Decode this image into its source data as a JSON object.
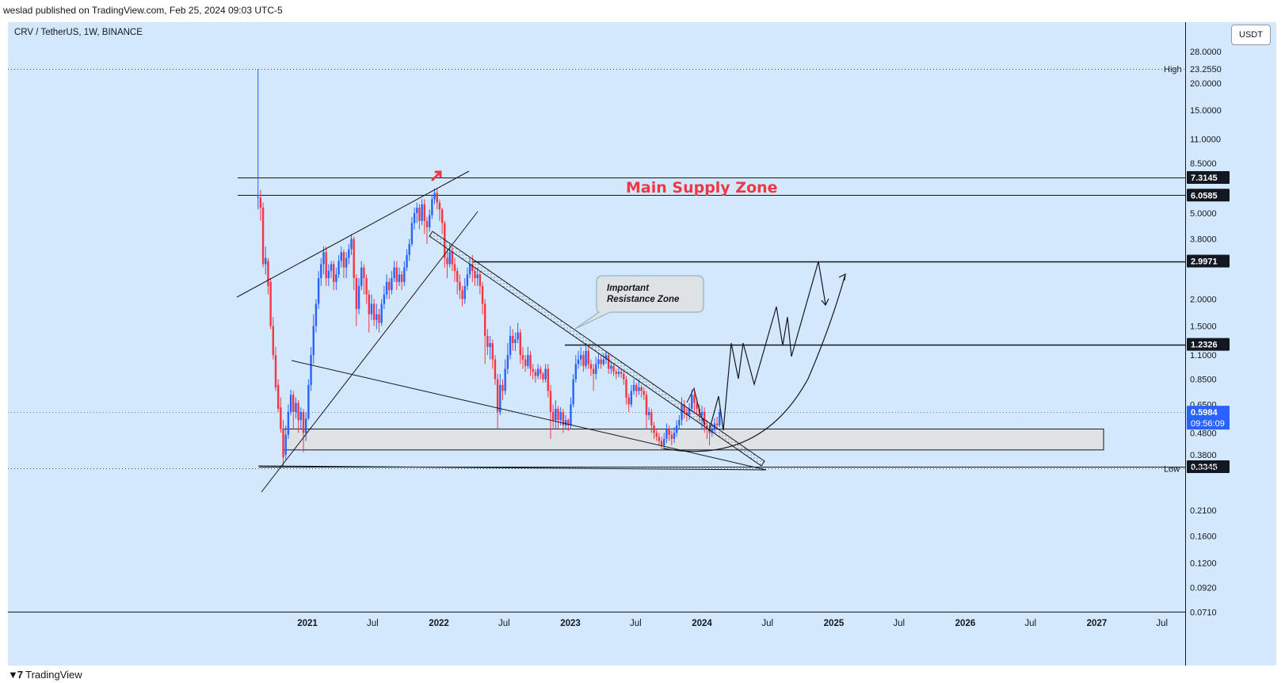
{
  "publisher": "weslad published on TradingView.com, Feb 25, 2024 09:03 UTC-5",
  "footer": {
    "logo_icon": "tradingview-logo-icon",
    "brand": "TradingView"
  },
  "symbol": "CRV / TetherUS, 1W, BINANCE",
  "currency": "USDT",
  "colors": {
    "background": "#d4e8fb",
    "up_candle": "#2962ff",
    "down_candle": "#f23645",
    "annotation_text": "#f23645",
    "line": "#131722"
  },
  "chart_data": {
    "type": "candlestick",
    "title": "",
    "yscale": "log",
    "y_ticks": [
      "28.0000",
      "20.0000",
      "15.0000",
      "11.0000",
      "8.5000",
      "5.0000",
      "3.8000",
      "2.0000",
      "1.5000",
      "1.1000",
      "0.8500",
      "0.6500",
      "0.4800",
      "0.3800",
      "0.2100",
      "0.1600",
      "0.1200",
      "0.0920",
      "0.0710"
    ],
    "x_ticks": [
      "2021",
      "Jul",
      "2022",
      "Jul",
      "2023",
      "Jul",
      "2024",
      "Jul",
      "2025",
      "Jul",
      "2026",
      "Jul",
      "2027",
      "Jul"
    ],
    "price_labels": [
      {
        "value": "7.3145",
        "style": "dark"
      },
      {
        "value": "6.0585",
        "style": "dark"
      },
      {
        "value": "2.9971",
        "style": "dark"
      },
      {
        "value": "1.2326",
        "style": "dark"
      },
      {
        "value": "0.5984",
        "style": "blue",
        "sub": "09:56:09"
      },
      {
        "value": "0.3345",
        "style": "dark"
      }
    ],
    "high": {
      "label": "High",
      "value": "23.2550"
    },
    "low": {
      "label": "Low",
      "value": "0.3280"
    },
    "horizontal_levels": [
      7.3145,
      6.0585,
      2.9971,
      1.2326,
      0.3345
    ],
    "zones": [
      {
        "label": "Main Supply Zone",
        "from": 6.0585,
        "to": 7.3145
      },
      {
        "label": "",
        "from": 0.4,
        "to": 0.5
      }
    ],
    "annotations": [
      {
        "type": "callout",
        "text": "Important\nResistance Zone"
      }
    ],
    "candles": [
      [
        "2020-08-17",
        5.95,
        5.95,
        23.26,
        5.2
      ],
      [
        "2020-08-24",
        5.9,
        5.3,
        6.4,
        4.6
      ],
      [
        "2020-08-31",
        5.3,
        2.9,
        5.6,
        2.8
      ],
      [
        "2020-09-07",
        2.9,
        3.1,
        3.5,
        2.6
      ],
      [
        "2020-09-14",
        3.0,
        2.3,
        3.1,
        2.1
      ],
      [
        "2020-09-21",
        2.4,
        1.5,
        2.5,
        1.45
      ],
      [
        "2020-09-28",
        1.5,
        1.1,
        1.65,
        1.05
      ],
      [
        "2020-10-05",
        1.1,
        0.78,
        1.2,
        0.75
      ],
      [
        "2020-10-12",
        0.8,
        0.62,
        0.85,
        0.6
      ],
      [
        "2020-10-19",
        0.63,
        0.5,
        0.7,
        0.48
      ],
      [
        "2020-10-26",
        0.5,
        0.37,
        0.55,
        0.33
      ],
      [
        "2020-11-02",
        0.38,
        0.47,
        0.52,
        0.36
      ],
      [
        "2020-11-09",
        0.47,
        0.6,
        0.65,
        0.45
      ],
      [
        "2020-11-16",
        0.6,
        0.72,
        0.76,
        0.58
      ],
      [
        "2020-11-23",
        0.72,
        0.6,
        0.75,
        0.5
      ],
      [
        "2020-11-30",
        0.6,
        0.66,
        0.7,
        0.56
      ],
      [
        "2020-12-07",
        0.66,
        0.55,
        0.68,
        0.48
      ],
      [
        "2020-12-14",
        0.55,
        0.6,
        0.63,
        0.5
      ],
      [
        "2020-12-21",
        0.6,
        0.48,
        0.62,
        0.39
      ],
      [
        "2020-12-28",
        0.48,
        0.56,
        0.6,
        0.44
      ],
      [
        "2021-01-04",
        0.56,
        0.8,
        0.85,
        0.55
      ],
      [
        "2021-01-11",
        0.8,
        1.1,
        1.2,
        0.75
      ],
      [
        "2021-01-18",
        1.1,
        1.5,
        1.7,
        1.0
      ],
      [
        "2021-01-25",
        1.5,
        1.9,
        2.0,
        1.4
      ],
      [
        "2021-02-01",
        1.9,
        2.5,
        2.7,
        1.8
      ],
      [
        "2021-02-08",
        2.5,
        2.9,
        3.1,
        2.3
      ],
      [
        "2021-02-15",
        2.9,
        3.3,
        3.5,
        2.6
      ],
      [
        "2021-02-22",
        3.3,
        2.5,
        3.5,
        2.3
      ],
      [
        "2021-03-01",
        2.5,
        2.7,
        2.9,
        2.3
      ],
      [
        "2021-03-08",
        2.7,
        2.9,
        3.0,
        2.5
      ],
      [
        "2021-03-15",
        2.9,
        2.4,
        3.0,
        2.2
      ],
      [
        "2021-03-22",
        2.4,
        2.6,
        2.8,
        2.2
      ],
      [
        "2021-03-29",
        2.6,
        3.0,
        3.2,
        2.5
      ],
      [
        "2021-04-05",
        3.0,
        3.3,
        3.5,
        2.8
      ],
      [
        "2021-04-12",
        3.3,
        2.8,
        3.4,
        2.5
      ],
      [
        "2021-04-19",
        2.8,
        3.1,
        3.3,
        2.5
      ],
      [
        "2021-04-26",
        3.1,
        3.4,
        3.6,
        2.9
      ],
      [
        "2021-05-03",
        3.4,
        3.8,
        4.0,
        3.2
      ],
      [
        "2021-05-10",
        3.8,
        2.5,
        3.9,
        2.2
      ],
      [
        "2021-05-17",
        2.5,
        1.8,
        2.6,
        1.5
      ],
      [
        "2021-05-24",
        1.8,
        2.3,
        2.5,
        1.7
      ],
      [
        "2021-05-31",
        2.3,
        2.8,
        3.0,
        2.2
      ],
      [
        "2021-06-07",
        2.8,
        2.5,
        2.9,
        2.1
      ],
      [
        "2021-06-14",
        2.5,
        2.1,
        2.6,
        1.9
      ],
      [
        "2021-06-21",
        2.1,
        1.7,
        2.2,
        1.4
      ],
      [
        "2021-06-28",
        1.7,
        1.9,
        2.1,
        1.6
      ],
      [
        "2021-07-05",
        1.9,
        1.6,
        2.0,
        1.5
      ],
      [
        "2021-07-12",
        1.6,
        1.7,
        1.9,
        1.45
      ],
      [
        "2021-07-19",
        1.7,
        1.55,
        1.8,
        1.4
      ],
      [
        "2021-07-26",
        1.55,
        1.9,
        2.0,
        1.5
      ],
      [
        "2021-08-02",
        1.9,
        2.1,
        2.3,
        1.8
      ],
      [
        "2021-08-09",
        2.1,
        2.4,
        2.6,
        2.0
      ],
      [
        "2021-08-16",
        2.4,
        2.2,
        2.5,
        2.0
      ],
      [
        "2021-08-23",
        2.2,
        2.5,
        2.7,
        2.1
      ],
      [
        "2021-08-30",
        2.5,
        2.8,
        3.0,
        2.4
      ],
      [
        "2021-09-06",
        2.8,
        2.4,
        3.0,
        2.2
      ],
      [
        "2021-09-13",
        2.4,
        2.6,
        2.8,
        2.3
      ],
      [
        "2021-09-20",
        2.6,
        2.4,
        2.7,
        2.2
      ],
      [
        "2021-09-27",
        2.4,
        2.8,
        3.0,
        2.3
      ],
      [
        "2021-10-04",
        2.8,
        3.2,
        3.4,
        2.7
      ],
      [
        "2021-10-11",
        3.2,
        3.6,
        3.8,
        3.0
      ],
      [
        "2021-10-18",
        3.6,
        4.5,
        4.8,
        3.5
      ],
      [
        "2021-10-25",
        4.5,
        5.0,
        5.3,
        4.2
      ],
      [
        "2021-11-01",
        5.0,
        5.3,
        5.6,
        4.5
      ],
      [
        "2021-11-08",
        5.3,
        4.6,
        5.5,
        4.2
      ],
      [
        "2021-11-15",
        4.6,
        5.5,
        5.8,
        4.4
      ],
      [
        "2021-11-22",
        5.5,
        4.6,
        5.8,
        4.0
      ],
      [
        "2021-11-29",
        4.6,
        4.3,
        4.8,
        3.6
      ],
      [
        "2021-12-06",
        4.3,
        4.9,
        5.2,
        4.1
      ],
      [
        "2021-12-13",
        4.9,
        5.8,
        6.1,
        4.7
      ],
      [
        "2021-12-20",
        5.8,
        6.2,
        6.5,
        5.5
      ],
      [
        "2021-12-27",
        6.2,
        5.6,
        6.5,
        5.2
      ],
      [
        "2022-01-03",
        5.6,
        5.2,
        5.8,
        4.6
      ],
      [
        "2022-01-10",
        5.2,
        4.5,
        5.3,
        4.0
      ],
      [
        "2022-01-17",
        4.5,
        3.1,
        4.6,
        2.8
      ],
      [
        "2022-01-24",
        3.1,
        2.9,
        3.4,
        2.5
      ],
      [
        "2022-01-31",
        2.9,
        3.3,
        3.6,
        2.8
      ],
      [
        "2022-02-07",
        3.3,
        2.9,
        3.5,
        2.7
      ],
      [
        "2022-02-14",
        2.9,
        2.7,
        3.1,
        2.4
      ],
      [
        "2022-02-21",
        2.7,
        2.4,
        2.8,
        2.1
      ],
      [
        "2022-02-28",
        2.4,
        2.2,
        2.6,
        2.0
      ],
      [
        "2022-03-07",
        2.2,
        2.0,
        2.3,
        1.85
      ],
      [
        "2022-03-14",
        2.0,
        2.3,
        2.5,
        1.9
      ],
      [
        "2022-03-21",
        2.3,
        2.6,
        2.8,
        2.2
      ],
      [
        "2022-03-28",
        2.6,
        2.9,
        3.1,
        2.5
      ],
      [
        "2022-04-04",
        2.9,
        2.7,
        3.2,
        2.4
      ],
      [
        "2022-04-11",
        2.7,
        2.5,
        2.8,
        2.3
      ],
      [
        "2022-04-18",
        2.5,
        2.6,
        2.8,
        2.3
      ],
      [
        "2022-04-25",
        2.6,
        2.3,
        2.7,
        2.1
      ],
      [
        "2022-05-02",
        2.3,
        1.9,
        2.4,
        1.7
      ],
      [
        "2022-05-09",
        1.9,
        1.35,
        2.0,
        1.0
      ],
      [
        "2022-05-16",
        1.35,
        1.2,
        1.45,
        1.1
      ],
      [
        "2022-05-23",
        1.2,
        1.25,
        1.35,
        1.05
      ],
      [
        "2022-05-30",
        1.25,
        1.05,
        1.3,
        0.95
      ],
      [
        "2022-06-06",
        1.05,
        0.85,
        1.1,
        0.8
      ],
      [
        "2022-06-13",
        0.85,
        0.6,
        0.9,
        0.5
      ],
      [
        "2022-06-20",
        0.6,
        0.8,
        0.9,
        0.58
      ],
      [
        "2022-06-27",
        0.8,
        0.75,
        0.85,
        0.68
      ],
      [
        "2022-07-04",
        0.75,
        0.95,
        1.05,
        0.72
      ],
      [
        "2022-07-11",
        0.95,
        1.1,
        1.25,
        0.9
      ],
      [
        "2022-07-18",
        1.1,
        1.35,
        1.5,
        1.05
      ],
      [
        "2022-07-25",
        1.35,
        1.25,
        1.45,
        1.15
      ],
      [
        "2022-08-01",
        1.25,
        1.3,
        1.4,
        1.15
      ],
      [
        "2022-08-08",
        1.3,
        1.4,
        1.55,
        1.25
      ],
      [
        "2022-08-15",
        1.4,
        1.1,
        1.45,
        1.0
      ],
      [
        "2022-08-22",
        1.1,
        1.05,
        1.2,
        0.95
      ],
      [
        "2022-08-29",
        1.05,
        0.98,
        1.1,
        0.92
      ],
      [
        "2022-09-05",
        0.98,
        1.1,
        1.2,
        0.95
      ],
      [
        "2022-09-12",
        1.1,
        0.95,
        1.15,
        0.88
      ],
      [
        "2022-09-19",
        0.95,
        0.92,
        1.0,
        0.85
      ],
      [
        "2022-09-26",
        0.92,
        0.88,
        0.95,
        0.82
      ],
      [
        "2022-10-03",
        0.88,
        0.95,
        1.0,
        0.85
      ],
      [
        "2022-10-10",
        0.95,
        0.9,
        0.98,
        0.85
      ],
      [
        "2022-10-17",
        0.9,
        0.85,
        0.92,
        0.82
      ],
      [
        "2022-10-24",
        0.85,
        0.95,
        1.0,
        0.82
      ],
      [
        "2022-10-31",
        0.95,
        0.75,
        1.0,
        0.7
      ],
      [
        "2022-11-07",
        0.75,
        0.6,
        0.8,
        0.45
      ],
      [
        "2022-11-14",
        0.6,
        0.55,
        0.65,
        0.5
      ],
      [
        "2022-11-21",
        0.55,
        0.62,
        0.68,
        0.5
      ],
      [
        "2022-11-28",
        0.62,
        0.55,
        0.64,
        0.5
      ],
      [
        "2022-12-05",
        0.55,
        0.6,
        0.63,
        0.52
      ],
      [
        "2022-12-12",
        0.6,
        0.52,
        0.62,
        0.48
      ],
      [
        "2022-12-19",
        0.52,
        0.55,
        0.58,
        0.5
      ],
      [
        "2022-12-26",
        0.55,
        0.52,
        0.56,
        0.49
      ],
      [
        "2023-01-02",
        0.52,
        0.65,
        0.7,
        0.5
      ],
      [
        "2023-01-09",
        0.65,
        0.85,
        0.9,
        0.63
      ],
      [
        "2023-01-16",
        0.85,
        1.0,
        1.1,
        0.82
      ],
      [
        "2023-01-23",
        1.0,
        1.05,
        1.15,
        0.95
      ],
      [
        "2023-01-30",
        1.05,
        1.1,
        1.2,
        0.98
      ],
      [
        "2023-02-06",
        1.1,
        0.98,
        1.15,
        0.92
      ],
      [
        "2023-02-13",
        0.98,
        1.15,
        1.25,
        0.95
      ],
      [
        "2023-02-20",
        1.15,
        1.0,
        1.2,
        0.95
      ],
      [
        "2023-02-27",
        1.0,
        0.95,
        1.05,
        0.88
      ],
      [
        "2023-03-06",
        0.95,
        0.9,
        1.0,
        0.75
      ],
      [
        "2023-03-13",
        0.9,
        1.0,
        1.08,
        0.85
      ],
      [
        "2023-03-20",
        1.0,
        1.05,
        1.12,
        0.95
      ],
      [
        "2023-03-27",
        1.05,
        1.0,
        1.1,
        0.95
      ],
      [
        "2023-04-03",
        1.0,
        1.05,
        1.12,
        0.98
      ],
      [
        "2023-04-10",
        1.05,
        1.1,
        1.15,
        1.0
      ],
      [
        "2023-04-17",
        1.1,
        0.95,
        1.12,
        0.9
      ],
      [
        "2023-04-24",
        0.95,
        0.98,
        1.02,
        0.9
      ],
      [
        "2023-05-01",
        0.98,
        0.92,
        1.0,
        0.88
      ],
      [
        "2023-05-08",
        0.92,
        0.9,
        0.95,
        0.85
      ],
      [
        "2023-05-15",
        0.9,
        0.92,
        0.96,
        0.87
      ],
      [
        "2023-05-22",
        0.92,
        0.9,
        0.95,
        0.86
      ],
      [
        "2023-05-29",
        0.9,
        0.85,
        0.93,
        0.8
      ],
      [
        "2023-06-05",
        0.85,
        0.7,
        0.88,
        0.65
      ],
      [
        "2023-06-12",
        0.7,
        0.65,
        0.73,
        0.6
      ],
      [
        "2023-06-19",
        0.65,
        0.75,
        0.8,
        0.63
      ],
      [
        "2023-06-26",
        0.75,
        0.8,
        0.85,
        0.72
      ],
      [
        "2023-07-03",
        0.8,
        0.75,
        0.82,
        0.7
      ],
      [
        "2023-07-10",
        0.75,
        0.78,
        0.85,
        0.72
      ],
      [
        "2023-07-17",
        0.78,
        0.75,
        0.8,
        0.7
      ],
      [
        "2023-07-24",
        0.75,
        0.72,
        0.78,
        0.68
      ],
      [
        "2023-07-31",
        0.72,
        0.58,
        0.75,
        0.5
      ],
      [
        "2023-08-07",
        0.58,
        0.6,
        0.63,
        0.55
      ],
      [
        "2023-08-14",
        0.6,
        0.52,
        0.62,
        0.48
      ],
      [
        "2023-08-21",
        0.52,
        0.48,
        0.54,
        0.45
      ],
      [
        "2023-08-28",
        0.48,
        0.46,
        0.5,
        0.44
      ],
      [
        "2023-09-04",
        0.46,
        0.44,
        0.48,
        0.42
      ],
      [
        "2023-09-11",
        0.44,
        0.42,
        0.46,
        0.4
      ],
      [
        "2023-09-18",
        0.42,
        0.45,
        0.48,
        0.41
      ],
      [
        "2023-09-25",
        0.45,
        0.5,
        0.53,
        0.43
      ],
      [
        "2023-10-02",
        0.5,
        0.47,
        0.52,
        0.44
      ],
      [
        "2023-10-09",
        0.47,
        0.45,
        0.49,
        0.42
      ],
      [
        "2023-10-16",
        0.45,
        0.48,
        0.51,
        0.43
      ],
      [
        "2023-10-23",
        0.48,
        0.52,
        0.55,
        0.46
      ],
      [
        "2023-10-30",
        0.52,
        0.55,
        0.58,
        0.5
      ],
      [
        "2023-11-06",
        0.55,
        0.65,
        0.7,
        0.52
      ],
      [
        "2023-11-13",
        0.65,
        0.6,
        0.68,
        0.56
      ],
      [
        "2023-11-20",
        0.6,
        0.58,
        0.63,
        0.54
      ],
      [
        "2023-11-27",
        0.58,
        0.62,
        0.66,
        0.55
      ],
      [
        "2023-12-04",
        0.62,
        0.72,
        0.76,
        0.6
      ],
      [
        "2023-12-11",
        0.72,
        0.66,
        0.75,
        0.6
      ],
      [
        "2023-12-18",
        0.66,
        0.62,
        0.7,
        0.58
      ],
      [
        "2023-12-25",
        0.62,
        0.58,
        0.65,
        0.54
      ],
      [
        "2024-01-01",
        0.58,
        0.6,
        0.64,
        0.5
      ],
      [
        "2024-01-08",
        0.6,
        0.52,
        0.63,
        0.48
      ],
      [
        "2024-01-15",
        0.52,
        0.5,
        0.55,
        0.45
      ],
      [
        "2024-01-22",
        0.5,
        0.48,
        0.53,
        0.42
      ],
      [
        "2024-01-29",
        0.48,
        0.5,
        0.53,
        0.46
      ],
      [
        "2024-02-05",
        0.5,
        0.53,
        0.56,
        0.48
      ],
      [
        "2024-02-12",
        0.53,
        0.52,
        0.57,
        0.5
      ],
      [
        "2024-02-19",
        0.52,
        0.5984,
        0.62,
        0.51
      ]
    ]
  }
}
